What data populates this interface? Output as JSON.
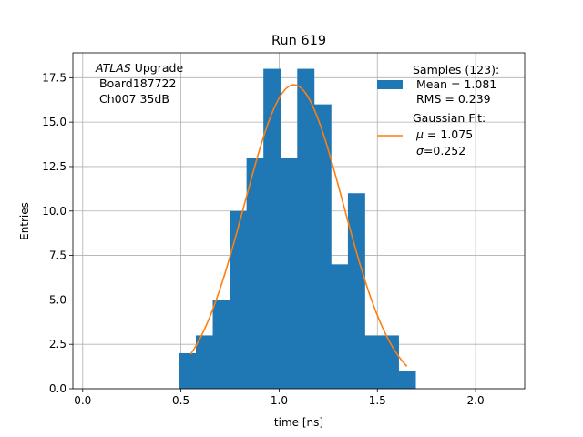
{
  "chart_data": {
    "type": "bar",
    "title": "Run 619",
    "xlabel": "time [ns]",
    "ylabel": "Entries",
    "xlim": [
      -0.05,
      2.25
    ],
    "ylim": [
      0,
      18.9
    ],
    "grid": true,
    "xticks": [
      0.0,
      0.5,
      1.0,
      1.5,
      2.0
    ],
    "xtick_labels": [
      "0.0",
      "0.5",
      "1.0",
      "1.5",
      "2.0"
    ],
    "yticks": [
      0.0,
      2.5,
      5.0,
      7.5,
      10.0,
      12.5,
      15.0,
      17.5
    ],
    "ytick_labels": [
      "0.0",
      "2.5",
      "5.0",
      "7.5",
      "10.0",
      "12.5",
      "15.0",
      "17.5"
    ],
    "annotation": {
      "line1_italic": "ATLAS",
      "line1_rest": " Upgrade",
      "line2": "Board187722",
      "line3": "Ch007 35dB"
    },
    "histogram": {
      "bin_edges": [
        0.49,
        0.576,
        0.662,
        0.748,
        0.834,
        0.92,
        1.006,
        1.092,
        1.178,
        1.264,
        1.35,
        1.436,
        1.522,
        1.608,
        1.694
      ],
      "counts": [
        2,
        3,
        5,
        10,
        13,
        18,
        13,
        18,
        16,
        7,
        11,
        3,
        3,
        1
      ],
      "color": "#1f77b4"
    },
    "gaussian_fit": {
      "mu": 1.075,
      "sigma": 0.252,
      "amplitude": 17.1,
      "x_start": 0.55,
      "x_end": 1.65,
      "color": "#ff7f0e"
    },
    "legend": {
      "placement": "top-right",
      "samples_title": "Samples (123):",
      "samples_mean": "Mean = 1.081",
      "samples_rms": "RMS = 0.239",
      "fit_title": "Gaussian Fit:",
      "fit_mu_symbol": "μ",
      "fit_mu_value": " = 1.075",
      "fit_sigma_symbol": "σ",
      "fit_sigma_value": "=0.252"
    }
  }
}
